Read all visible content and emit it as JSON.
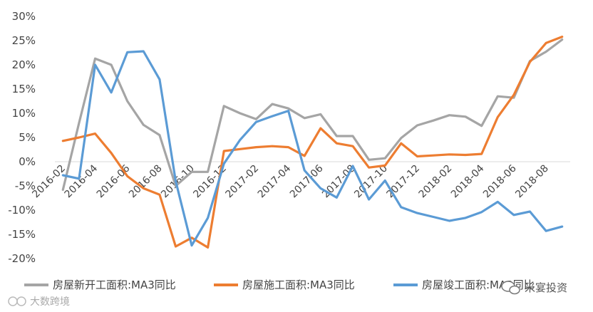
{
  "chart_data": {
    "type": "line",
    "title": "",
    "xlabel": "",
    "ylabel": "",
    "ylim": [
      -20,
      30
    ],
    "yticks": [
      30,
      25,
      20,
      15,
      10,
      5,
      0,
      -5,
      -10,
      -15,
      -20
    ],
    "ytick_labels": [
      "30%",
      "25%",
      "20%",
      "15%",
      "10%",
      "5%",
      "0%",
      "-5%",
      "-10%",
      "-15%",
      "-20%"
    ],
    "grid": false,
    "legend_position": "bottom",
    "categories": [
      "2016-02",
      "2016-03",
      "2016-04",
      "2016-05",
      "2016-06",
      "2016-07",
      "2016-08",
      "2016-09",
      "2016-10",
      "2016-11",
      "2016-12",
      "2017-01",
      "2017-02",
      "2017-03",
      "2017-04",
      "2017-05",
      "2017-06",
      "2017-07",
      "2017-08",
      "2017-09",
      "2017-10",
      "2017-11",
      "2017-12",
      "2018-01",
      "2018-02",
      "2018-03",
      "2018-04",
      "2018-05",
      "2018-06",
      "2018-07",
      "2018-08",
      "2018-09"
    ],
    "x_tick_labels": [
      "2016-02",
      "2016-04",
      "2016-06",
      "2016-08",
      "2016-10",
      "2016-12",
      "2017-02",
      "2017-04",
      "2017-06",
      "2017-08",
      "2017-10",
      "2017-12",
      "2018-02",
      "2018-04",
      "2018-06",
      "2018-08"
    ],
    "series": [
      {
        "name": "房屋新开工面积:MA3同比",
        "color": "#a5a5a5",
        "values": [
          -5.8,
          8.0,
          21.3,
          20.0,
          12.5,
          7.6,
          5.5,
          -5.0,
          -2.1,
          -2.1,
          11.5,
          10.0,
          8.8,
          11.9,
          11.0,
          9.0,
          9.8,
          5.3,
          5.3,
          0.4,
          0.7,
          4.9,
          7.5,
          8.5,
          9.6,
          9.3,
          7.4,
          13.5,
          13.2,
          20.8,
          22.7,
          25.2
        ]
      },
      {
        "name": "房屋施工面积:MA3同比",
        "color": "#ed7d31",
        "values": [
          4.3,
          5.0,
          5.8,
          1.8,
          -3.0,
          -5.5,
          -6.8,
          -17.5,
          -15.7,
          -17.7,
          2.2,
          2.6,
          3.0,
          3.2,
          3.0,
          1.2,
          6.9,
          3.8,
          3.2,
          -1.2,
          -0.8,
          3.8,
          1.1,
          1.3,
          1.5,
          1.4,
          1.6,
          9.2,
          13.8,
          20.6,
          24.5,
          25.8
        ]
      },
      {
        "name": "房屋竣工面积:MA3同比",
        "color": "#5b9bd5",
        "values": [
          -2.8,
          -3.5,
          20.0,
          14.3,
          22.6,
          22.8,
          17.0,
          -4.0,
          -17.3,
          -11.6,
          -0.4,
          4.5,
          8.2,
          9.4,
          10.5,
          -1.8,
          -5.5,
          -7.4,
          -0.9,
          -7.8,
          -3.9,
          -9.4,
          -10.6,
          -11.4,
          -12.2,
          -11.6,
          -10.4,
          -8.3,
          -11.0,
          -10.3,
          -14.3,
          -13.4
        ]
      }
    ]
  },
  "watermarks": {
    "bottom_left": "大数跨境",
    "bottom_right": "米宴投资"
  }
}
